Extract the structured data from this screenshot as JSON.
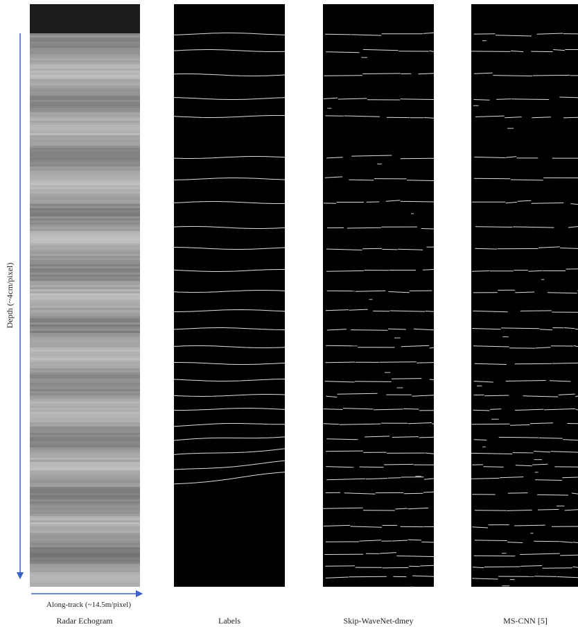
{
  "figure": {
    "y_axis_label": "Depth (~4cm/pixel)",
    "x_axis_label": "Along-track (~14.5m/pixel)",
    "panels": [
      {
        "caption": "Radar Echogram"
      },
      {
        "caption": "Labels"
      },
      {
        "caption": "Skip-WaveNet-dmey"
      },
      {
        "caption": "MS-CNN [5]"
      }
    ]
  }
}
